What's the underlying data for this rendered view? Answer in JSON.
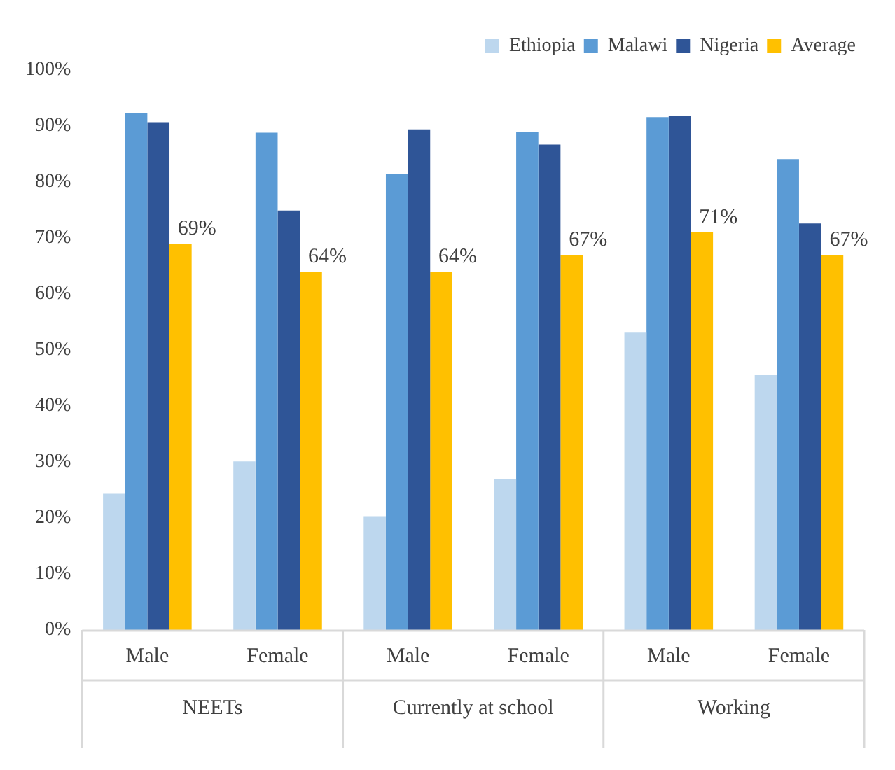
{
  "chart_data": {
    "type": "bar",
    "categories": [
      "Male",
      "Female",
      "Male",
      "Female",
      "Male",
      "Female"
    ],
    "annotations": [
      "NEETs",
      "Currently at school",
      "Working"
    ],
    "series": [
      {
        "name": "Ethiopia",
        "color": "#bdd7ee",
        "values": [
          24.3,
          30.1,
          20.3,
          27.0,
          53.1,
          45.5
        ]
      },
      {
        "name": "Malawi",
        "color": "#5b9bd5",
        "values": [
          92.3,
          88.8,
          81.5,
          89.0,
          91.6,
          84.1
        ]
      },
      {
        "name": "Nigeria",
        "color": "#2f5597",
        "values": [
          90.7,
          74.9,
          89.4,
          86.7,
          91.8,
          72.6
        ]
      },
      {
        "name": "Average",
        "color": "#ffc000",
        "values": [
          69,
          64,
          64,
          67,
          71,
          67
        ],
        "value_labels": [
          "69%",
          "64%",
          "64%",
          "67%",
          "71%",
          "67%"
        ]
      }
    ],
    "ylim": [
      0,
      100
    ],
    "yticks": [
      {
        "value": 0,
        "label": "0%"
      },
      {
        "value": 10,
        "label": "10%"
      },
      {
        "value": 20,
        "label": "20%"
      },
      {
        "value": 30,
        "label": "30%"
      },
      {
        "value": 40,
        "label": "40%"
      },
      {
        "value": 50,
        "label": "50%"
      },
      {
        "value": 60,
        "label": "60%"
      },
      {
        "value": 70,
        "label": "70%"
      },
      {
        "value": 80,
        "label": "80%"
      },
      {
        "value": 90,
        "label": "90%"
      },
      {
        "value": 100,
        "label": "100%"
      }
    ],
    "grid": false,
    "legend": "top right"
  }
}
